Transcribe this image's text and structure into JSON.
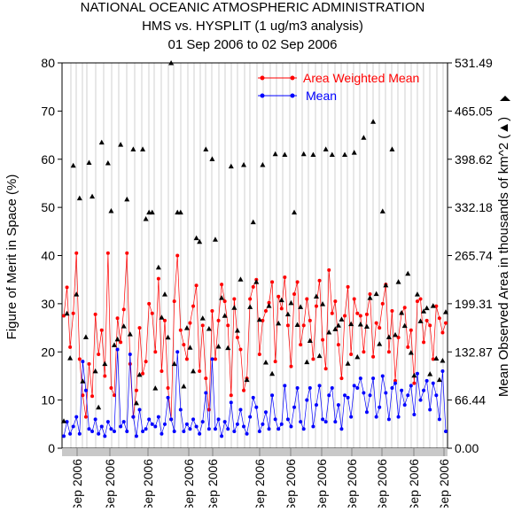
{
  "chart_data": {
    "type": "line",
    "title": "NATIONAL OCEANIC ATMOSPHERIC ADMINISTRATION",
    "subtitle": "HMS vs. HYSPLIT (1 ug/m3 analysis)",
    "date_range": "01 Sep 2006 to 02 Sep 2006",
    "ylabel": "Figure of Merit in Space (%)",
    "ylabel_right": "Mean Observed Area in thousands of km^2 (▲)",
    "ylim": [
      0,
      80
    ],
    "yticks": [
      "0",
      "10",
      "20",
      "30",
      "40",
      "50",
      "60",
      "70",
      "80"
    ],
    "ylim_right": [
      0,
      531.49
    ],
    "yticks_right": [
      "0.00",
      "66.44",
      "132.87",
      "199.31",
      "265.74",
      "332.18",
      "398.62",
      "465.05",
      "531.49"
    ],
    "xticks": [
      "Sep 2006",
      "Sep 2006",
      "Sep 2006",
      "Sep 2006",
      "Sep 2006",
      "Sep 2006",
      "Sep 2006",
      "Sep 2006",
      "Sep 2006",
      "Sep 2006",
      "Sep 2006",
      "Sep 2006"
    ],
    "legend_placement": "top-right",
    "series": [
      {
        "name": "Area Weighted Mean",
        "color": "#ff0000",
        "values": [
          27.5,
          33.4,
          21.0,
          28.0,
          40.5,
          18.5,
          11.0,
          6.5,
          17.5,
          10.8,
          27.8,
          19.5,
          24.5,
          15.0,
          40.5,
          12.5,
          11.0,
          27.0,
          22.0,
          28.8,
          40.5,
          17.5,
          6.5,
          12.0,
          25.0,
          15.5,
          18.0,
          30.0,
          28.0,
          20.0,
          35.2,
          16.0,
          26.5,
          12.5,
          6.0,
          30.5,
          40.0,
          24.5,
          21.5,
          18.5,
          26.0,
          29.5,
          33.8,
          16.0,
          25.5,
          14.5,
          8.0,
          28.5,
          18.5,
          26.5,
          34.0,
          30.5,
          25.5,
          11.0,
          31.0,
          23.0,
          20.5,
          12.0,
          14.5,
          31.0,
          33.5,
          35.0,
          19.5,
          26.5,
          28.5,
          30.2,
          34.5,
          18.0,
          31.5,
          29.0,
          35.5,
          25.5,
          17.0,
          32.0,
          34.5,
          21.5,
          25.5,
          31.0,
          26.5,
          18.5,
          29.5,
          34.8,
          22.5,
          16.5,
          37.0,
          28.0,
          30.5,
          21.5,
          14.5,
          27.5,
          33.5,
          19.5,
          31.0,
          28.0,
          27.5,
          20.0,
          27.8,
          32.0,
          19.0,
          26.0,
          25.0,
          30.0,
          34.0,
          20.0,
          28.5,
          14.0,
          23.0,
          28.0,
          29.2,
          21.0,
          24.5,
          13.5,
          30.5,
          31.0,
          22.0,
          26.5,
          25.5,
          18.5,
          29.5,
          27.0,
          24.0,
          26.0
        ]
      },
      {
        "name": "Mean",
        "color": "#0000ff",
        "values": [
          2.5,
          5.5,
          3.0,
          4.5,
          6.5,
          3.0,
          18.0,
          12.0,
          4.0,
          3.5,
          6.0,
          3.0,
          4.5,
          2.5,
          5.5,
          4.0,
          3.5,
          20.5,
          4.5,
          5.5,
          3.5,
          19.5,
          6.5,
          2.5,
          8.0,
          3.5,
          4.0,
          6.0,
          5.0,
          4.5,
          6.5,
          3.0,
          5.0,
          10.5,
          6.0,
          3.5,
          20.0,
          8.0,
          3.5,
          5.0,
          4.0,
          6.0,
          4.5,
          3.0,
          5.5,
          11.5,
          4.0,
          18.5,
          4.0,
          6.0,
          2.5,
          5.5,
          4.0,
          9.5,
          3.5,
          5.0,
          8.0,
          4.5,
          3.0,
          6.5,
          10.5,
          8.5,
          3.5,
          5.0,
          7.5,
          4.0,
          11.0,
          6.0,
          4.0,
          5.0,
          13.0,
          6.0,
          4.5,
          8.5,
          12.5,
          5.5,
          4.0,
          10.0,
          12.5,
          4.5,
          9.0,
          13.0,
          6.0,
          5.5,
          11.0,
          12.5,
          5.5,
          9.0,
          4.0,
          11.0,
          10.5,
          6.5,
          13.0,
          12.5,
          14.5,
          11.5,
          7.5,
          11.0,
          14.5,
          6.5,
          8.5,
          15.0,
          11.5,
          6.0,
          12.5,
          13.5,
          6.5,
          12.0,
          9.0,
          11.0,
          13.0,
          7.0,
          15.5,
          10.0,
          12.0,
          14.0,
          8.0,
          13.5,
          11.0,
          6.0,
          16.0,
          3.5
        ]
      },
      {
        "name": "Mean Observed Area",
        "color": "#000000",
        "marker": "triangle",
        "values": [
          37.5,
          186.0,
          124.5,
          390.0,
          212.5,
          345.0,
          92.5,
          153.5,
          394.0,
          347.5,
          106.5,
          56.5,
          422.0,
          116.5,
          393.5,
          327.5,
          142.5,
          150.5,
          419.0,
          168.5,
          343.5,
          157.5,
          412.5,
          62.5,
          101.5,
          412.5,
          316.5,
          325.5,
          325.5,
          83.0,
          249.5,
          180.5,
          212.5,
          153.0,
          531.5,
          116.5,
          325.5,
          325.5,
          85.5,
          166.0,
          139.0,
          106.5,
          290.0,
          285.0,
          179.5,
          412.5,
          165.0,
          399.0,
          288.0,
          140.5,
          207.5,
          183.0,
          138.5,
          389.0,
          194.0,
          162.5,
          233.0,
          391.0,
          94.5,
          195.0,
          312.0,
          229.5,
          177.5,
          391.0,
          118.5,
          196.5,
          103.0,
          406.0,
          172.5,
          204.5,
          405.0,
          185.0,
          200.5,
          325.5,
          170.5,
          195.0,
          406.0,
          119.0,
          148.5,
          405.0,
          209.5,
          127.5,
          199.0,
          412.5,
          160.0,
          405.0,
          164.5,
          169.5,
          178.0,
          405.0,
          117.0,
          171.5,
          408.0,
          126.0,
          171.0,
          428.5,
          168.0,
          207.5,
          450.5,
          213.0,
          144.0,
          327.0,
          225.0,
          153.5,
          412.5,
          156.5,
          229.5,
          187.0,
          169.0,
          241.0,
          132.0,
          100.5,
          212.5,
          175.5,
          189.0,
          193.5,
          102.5,
          196.5,
          124.0,
          94.5,
          121.0,
          188.0
        ]
      }
    ]
  }
}
